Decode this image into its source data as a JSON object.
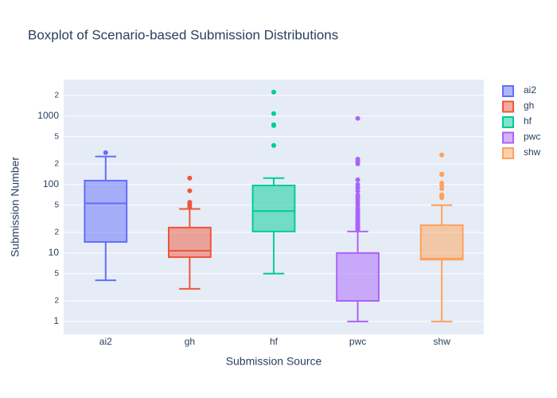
{
  "chart_data": {
    "type": "box",
    "title": "Boxplot of Scenario-based Submission Distributions",
    "x_label": "Submission Source",
    "y_label": "Submission Number",
    "log_y": true,
    "grid": true,
    "legend_position": "top-right",
    "categories": [
      "ai2",
      "gh",
      "hf",
      "pwc",
      "shw"
    ],
    "ylim": [
      0.65,
      3400
    ],
    "yticks": [
      1,
      {
        "value": 2,
        "label": "2"
      },
      {
        "value": 5,
        "label": "5"
      },
      10,
      {
        "value": 20,
        "label": "2"
      },
      {
        "value": 50,
        "label": "5"
      },
      100,
      {
        "value": 200,
        "label": "2"
      },
      {
        "value": 500,
        "label": "5"
      },
      1000,
      {
        "value": 2000,
        "label": "2"
      }
    ],
    "series": [
      {
        "name": "ai2",
        "color": "#636efa",
        "min": 4,
        "q1": 14.5,
        "median": 53,
        "q3": 114,
        "max": 256,
        "outliers": [
          292
        ]
      },
      {
        "name": "gh",
        "color": "#ef553b",
        "min": 3,
        "q1": 8.7,
        "median": 10.8,
        "q3": 23.5,
        "max": 44,
        "outliers": [
          124,
          81,
          55,
          51,
          47
        ]
      },
      {
        "name": "hf",
        "color": "#00cc96",
        "min": 5,
        "q1": 20.6,
        "median": 41,
        "q3": 97,
        "max": 124,
        "outliers": [
          2230,
          1084,
          745,
          724,
          371
        ]
      },
      {
        "name": "pwc",
        "color": "#ab63fa",
        "min": 1,
        "q1": 2,
        "median": 2,
        "q3": 10,
        "max": 20.6,
        "outliers": [
          924,
          235,
          218,
          200,
          117,
          100,
          90,
          80,
          70,
          65,
          60,
          55,
          50,
          45,
          42,
          40,
          38,
          35,
          33,
          31,
          30,
          28,
          27,
          26,
          25,
          24,
          23,
          22
        ]
      },
      {
        "name": "shw",
        "color": "#ffa15a",
        "min": 1,
        "q1": 8,
        "median": 8.3,
        "q3": 25.5,
        "max": 50,
        "outliers": [
          270,
          142,
          140,
          105,
          97,
          87,
          71,
          67,
          64
        ]
      }
    ]
  }
}
